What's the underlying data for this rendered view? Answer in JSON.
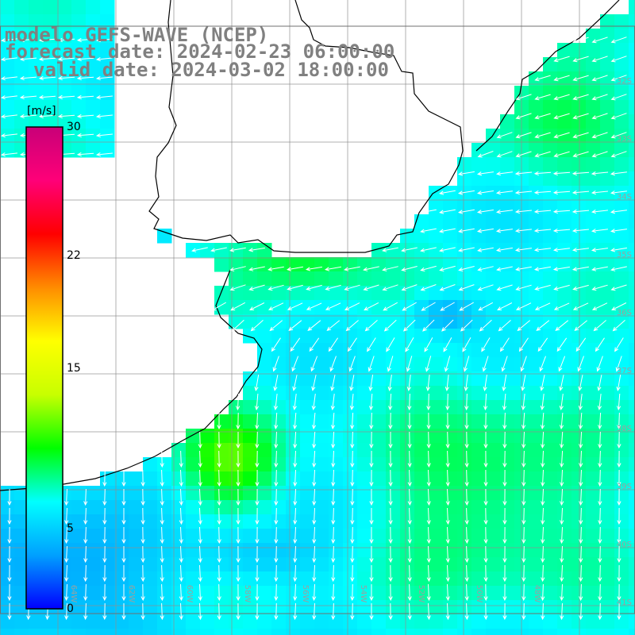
{
  "title": {
    "model": "modelo GEFS-WAVE (NCEP)",
    "forecast": "forecast date: 2024-02-23 06:00:00",
    "valid": "valid date: 2024-03-02 18:00:00"
  },
  "colorbar": {
    "units": "[m/s]",
    "ticks": [
      {
        "label": "30",
        "value": 30
      },
      {
        "label": "22",
        "value": 22
      },
      {
        "label": "15",
        "value": 15
      },
      {
        "label": "5",
        "value": 5
      },
      {
        "label": "0",
        "value": 0
      }
    ],
    "min": 0,
    "max": 30,
    "colors": [
      "#0000ff",
      "#00a0ff",
      "#00ffff",
      "#00ff00",
      "#c8ff00",
      "#ffff00",
      "#ff8c00",
      "#ff0000",
      "#ff0078",
      "#c80078"
    ]
  },
  "grid_labels": {
    "right": [
      "32S",
      "33S",
      "34S",
      "35S",
      "36S",
      "37S",
      "38S",
      "39S",
      "40S",
      "41S"
    ],
    "bottom": [
      "64W",
      "62W",
      "60W",
      "58W",
      "56W",
      "54W",
      "52W",
      "50W",
      "48W"
    ]
  },
  "wind_field": {
    "variable": "wind speed",
    "units": "m/s"
  }
}
